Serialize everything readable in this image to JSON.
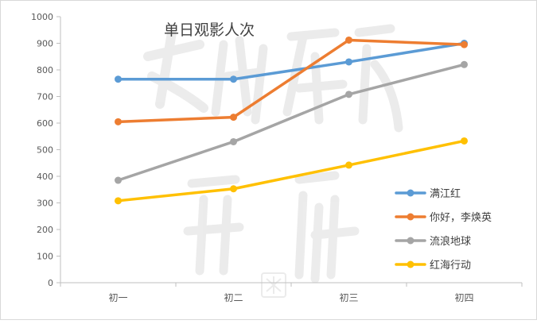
{
  "chart_data": {
    "type": "line",
    "title": "单日观影人次",
    "xlabel": "",
    "ylabel": "",
    "categories": [
      "初一",
      "初二",
      "初三",
      "初四"
    ],
    "ylim": [
      0,
      1000
    ],
    "yticks": [
      0,
      100,
      200,
      300,
      400,
      500,
      600,
      700,
      800,
      900,
      1000
    ],
    "grid": false,
    "legend_position": "right",
    "series": [
      {
        "name": "满江红",
        "color": "#5b9bd5",
        "values": [
          765,
          765,
          830,
          900
        ]
      },
      {
        "name": "你好，李焕英",
        "color": "#ed7d31",
        "values": [
          605,
          622,
          912,
          895
        ]
      },
      {
        "name": "流浪地球",
        "color": "#a5a5a5",
        "values": [
          385,
          530,
          708,
          820
        ]
      },
      {
        "name": "红海行动",
        "color": "#ffc000",
        "values": [
          308,
          353,
          442,
          533
        ]
      }
    ]
  },
  "watermark": {
    "text": "文化产业评论",
    "color": "#c8c8c8"
  }
}
